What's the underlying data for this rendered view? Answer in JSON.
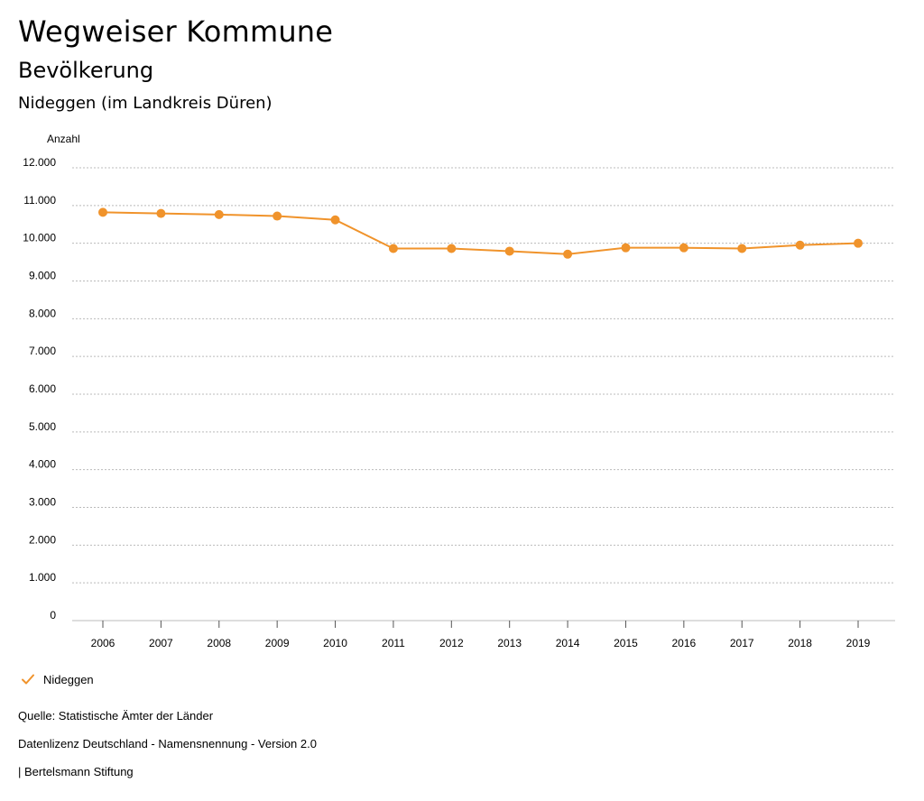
{
  "header": {
    "title": "Wegweiser Kommune",
    "subtitle": "Bevölkerung",
    "region": "Nideggen (im Landkreis Düren)"
  },
  "chart_data": {
    "type": "line",
    "ylabel": "Anzahl",
    "xlabel": "",
    "ylim": [
      0,
      12000
    ],
    "yticks": [
      0,
      1000,
      2000,
      3000,
      4000,
      5000,
      6000,
      7000,
      8000,
      9000,
      10000,
      11000,
      12000
    ],
    "ytick_labels": [
      "0",
      "1.000",
      "2.000",
      "3.000",
      "4.000",
      "5.000",
      "6.000",
      "7.000",
      "8.000",
      "9.000",
      "10.000",
      "11.000",
      "12.000"
    ],
    "categories": [
      "2006",
      "2007",
      "2008",
      "2009",
      "2010",
      "2011",
      "2012",
      "2013",
      "2014",
      "2015",
      "2016",
      "2017",
      "2018",
      "2019"
    ],
    "series": [
      {
        "name": "Nideggen",
        "color": "#f0932b",
        "values": [
          10820,
          10790,
          10760,
          10720,
          10620,
          9860,
          9860,
          9790,
          9710,
          9880,
          9880,
          9860,
          9950,
          10000
        ]
      }
    ],
    "grid": true,
    "legend_position": "bottom-left"
  },
  "legend": {
    "label": "Nideggen",
    "icon": "check-icon"
  },
  "footer": {
    "source": "Quelle: Statistische Ämter der Länder",
    "license": "Datenlizenz Deutschland - Namensnennung - Version 2.0",
    "credit": "| Bertelsmann Stiftung"
  }
}
